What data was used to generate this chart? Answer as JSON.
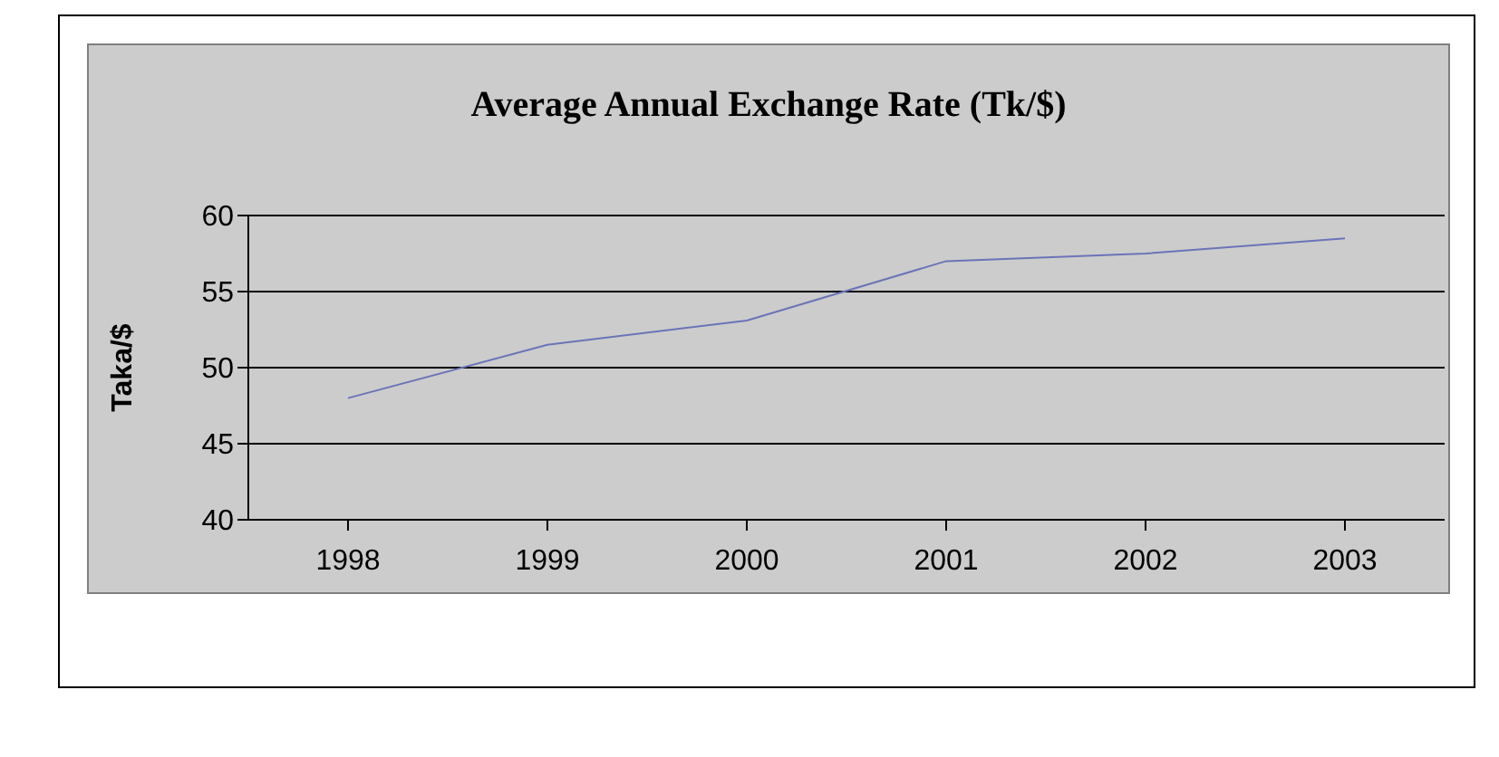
{
  "chart_data": {
    "type": "line",
    "title": "Average Annual Exchange Rate (Tk/$)",
    "ylabel": "Taka/$",
    "categories": [
      "1998",
      "1999",
      "2000",
      "2001",
      "2002",
      "2003"
    ],
    "series": [
      {
        "color": "#6b74b8",
        "values": [
          48.0,
          51.5,
          53.1,
          57.0,
          57.5,
          58.5
        ]
      }
    ],
    "ylim": [
      40,
      60
    ],
    "yticks": [
      40,
      45,
      50,
      55,
      60
    ],
    "grid": "y",
    "legend": false,
    "marker": "none",
    "line_style": "solid"
  }
}
